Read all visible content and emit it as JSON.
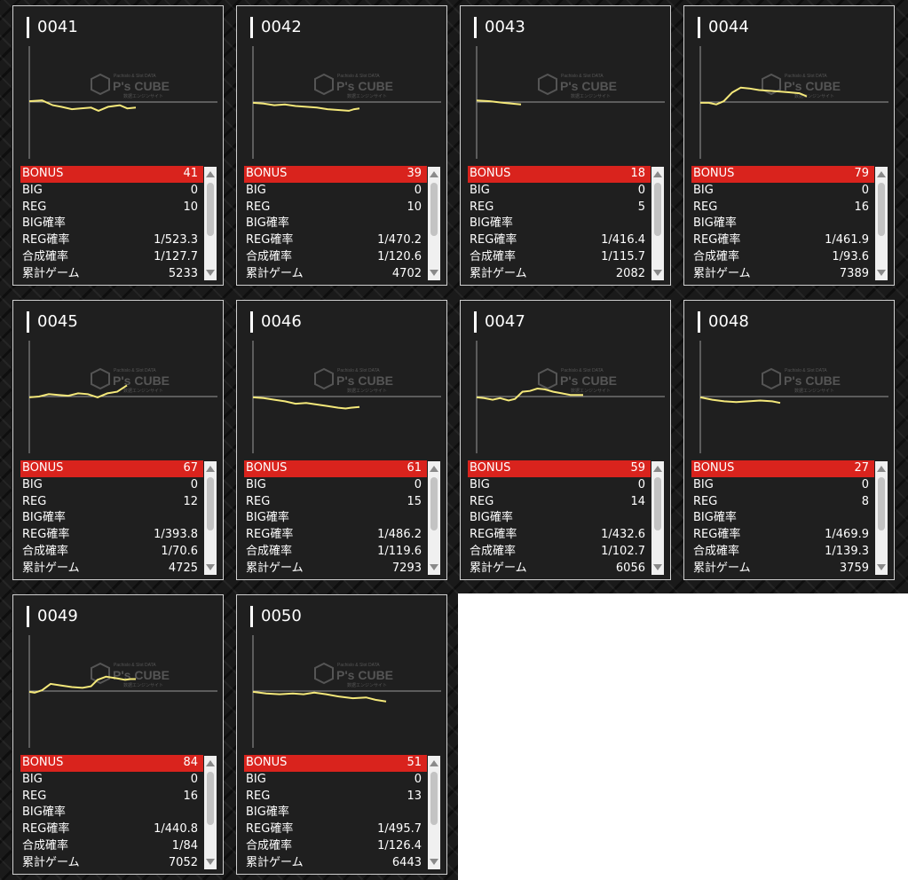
{
  "colors": {
    "bonus_row": "#d9231d",
    "line": "#f4e87a",
    "panel": "#1f1f1f"
  },
  "watermark": {
    "brand": "P's CUBE",
    "top": "Pachislo & Slot DATA",
    "sub": "数据エンジンサイト"
  },
  "labels": {
    "bonus": "BONUS",
    "big": "BIG",
    "reg": "REG",
    "big_rate": "BIG確率",
    "reg_rate": "REG確率",
    "total_rate": "合成確率",
    "games": "累計ゲーム"
  },
  "machines": [
    {
      "id": "0041",
      "bonus": "41",
      "big": "0",
      "reg": "10",
      "big_rate": "",
      "reg_rate": "1/523.3",
      "total_rate": "1/127.7",
      "games": "5233",
      "line": [
        [
          0,
          10
        ],
        [
          0.12,
          20
        ],
        [
          0.22,
          -40
        ],
        [
          0.3,
          -60
        ],
        [
          0.4,
          -90
        ],
        [
          0.48,
          -80
        ],
        [
          0.58,
          -70
        ],
        [
          0.65,
          -110
        ],
        [
          0.74,
          -60
        ],
        [
          0.85,
          -40
        ],
        [
          0.92,
          -80
        ],
        [
          1,
          -70
        ]
      ]
    },
    {
      "id": "0042",
      "bonus": "39",
      "big": "0",
      "reg": "10",
      "big_rate": "",
      "reg_rate": "1/470.2",
      "total_rate": "1/120.6",
      "games": "4702",
      "line": [
        [
          0,
          -10
        ],
        [
          0.1,
          -20
        ],
        [
          0.2,
          -40
        ],
        [
          0.3,
          -30
        ],
        [
          0.4,
          -50
        ],
        [
          0.5,
          -60
        ],
        [
          0.6,
          -70
        ],
        [
          0.7,
          -90
        ],
        [
          0.8,
          -100
        ],
        [
          0.9,
          -110
        ],
        [
          0.95,
          -90
        ],
        [
          1,
          -80
        ]
      ]
    },
    {
      "id": "0043",
      "bonus": "18",
      "big": "0",
      "reg": "5",
      "big_rate": "",
      "reg_rate": "1/416.4",
      "total_rate": "1/115.7",
      "games": "2082",
      "line": [
        [
          0,
          20
        ],
        [
          0.3,
          10
        ],
        [
          0.6,
          -10
        ],
        [
          1,
          -30
        ]
      ]
    },
    {
      "id": "0044",
      "bonus": "79",
      "big": "0",
      "reg": "16",
      "big_rate": "",
      "reg_rate": "1/461.9",
      "total_rate": "1/93.6",
      "games": "7389",
      "line": [
        [
          0,
          -10
        ],
        [
          0.08,
          -10
        ],
        [
          0.15,
          -30
        ],
        [
          0.22,
          10
        ],
        [
          0.3,
          120
        ],
        [
          0.38,
          180
        ],
        [
          0.46,
          170
        ],
        [
          0.55,
          150
        ],
        [
          0.65,
          140
        ],
        [
          0.75,
          130
        ],
        [
          0.85,
          120
        ],
        [
          0.93,
          110
        ],
        [
          1,
          70
        ]
      ]
    },
    {
      "id": "0045",
      "bonus": "67",
      "big": "0",
      "reg": "12",
      "big_rate": "",
      "reg_rate": "1/393.8",
      "total_rate": "1/70.6",
      "games": "4725",
      "line": [
        [
          0,
          -10
        ],
        [
          0.1,
          0
        ],
        [
          0.2,
          30
        ],
        [
          0.3,
          20
        ],
        [
          0.4,
          10
        ],
        [
          0.5,
          40
        ],
        [
          0.6,
          30
        ],
        [
          0.7,
          -10
        ],
        [
          0.8,
          40
        ],
        [
          0.9,
          60
        ],
        [
          1,
          140
        ]
      ]
    },
    {
      "id": "0046",
      "bonus": "61",
      "big": "0",
      "reg": "15",
      "big_rate": "",
      "reg_rate": "1/486.2",
      "total_rate": "1/119.6",
      "games": "7293",
      "line": [
        [
          0,
          -10
        ],
        [
          0.1,
          -20
        ],
        [
          0.2,
          -40
        ],
        [
          0.3,
          -60
        ],
        [
          0.4,
          -90
        ],
        [
          0.5,
          -80
        ],
        [
          0.6,
          -100
        ],
        [
          0.7,
          -120
        ],
        [
          0.8,
          -140
        ],
        [
          0.87,
          -150
        ],
        [
          0.92,
          -140
        ],
        [
          1,
          -130
        ]
      ]
    },
    {
      "id": "0047",
      "bonus": "59",
      "big": "0",
      "reg": "14",
      "big_rate": "",
      "reg_rate": "1/432.6",
      "total_rate": "1/102.7",
      "games": "6056",
      "line": [
        [
          0,
          -10
        ],
        [
          0.07,
          -20
        ],
        [
          0.15,
          -40
        ],
        [
          0.22,
          -20
        ],
        [
          0.3,
          -50
        ],
        [
          0.36,
          -30
        ],
        [
          0.43,
          60
        ],
        [
          0.5,
          70
        ],
        [
          0.57,
          100
        ],
        [
          0.64,
          90
        ],
        [
          0.72,
          60
        ],
        [
          0.8,
          40
        ],
        [
          0.88,
          20
        ],
        [
          1,
          20
        ]
      ]
    },
    {
      "id": "0048",
      "bonus": "27",
      "big": "0",
      "reg": "8",
      "big_rate": "",
      "reg_rate": "1/469.9",
      "total_rate": "1/139.3",
      "games": "3759",
      "line": [
        [
          0,
          -10
        ],
        [
          0.15,
          -40
        ],
        [
          0.3,
          -60
        ],
        [
          0.45,
          -70
        ],
        [
          0.6,
          -60
        ],
        [
          0.75,
          -50
        ],
        [
          0.9,
          -60
        ],
        [
          1,
          -80
        ]
      ]
    },
    {
      "id": "0049",
      "bonus": "84",
      "big": "0",
      "reg": "16",
      "big_rate": "",
      "reg_rate": "1/440.8",
      "total_rate": "1/84",
      "games": "7052",
      "line": [
        [
          0,
          -10
        ],
        [
          0.05,
          -20
        ],
        [
          0.12,
          10
        ],
        [
          0.2,
          90
        ],
        [
          0.3,
          70
        ],
        [
          0.4,
          50
        ],
        [
          0.5,
          40
        ],
        [
          0.58,
          60
        ],
        [
          0.64,
          140
        ],
        [
          0.72,
          180
        ],
        [
          0.82,
          160
        ],
        [
          0.9,
          140
        ],
        [
          0.95,
          150
        ],
        [
          1,
          150
        ]
      ]
    },
    {
      "id": "0050",
      "bonus": "51",
      "big": "0",
      "reg": "13",
      "big_rate": "",
      "reg_rate": "1/495.7",
      "total_rate": "1/126.4",
      "games": "6443",
      "line": [
        [
          0,
          -10
        ],
        [
          0.1,
          -30
        ],
        [
          0.2,
          -40
        ],
        [
          0.3,
          -30
        ],
        [
          0.38,
          -40
        ],
        [
          0.46,
          -20
        ],
        [
          0.55,
          -40
        ],
        [
          0.65,
          -70
        ],
        [
          0.75,
          -90
        ],
        [
          0.85,
          -80
        ],
        [
          0.92,
          -110
        ],
        [
          1,
          -130
        ]
      ]
    }
  ]
}
